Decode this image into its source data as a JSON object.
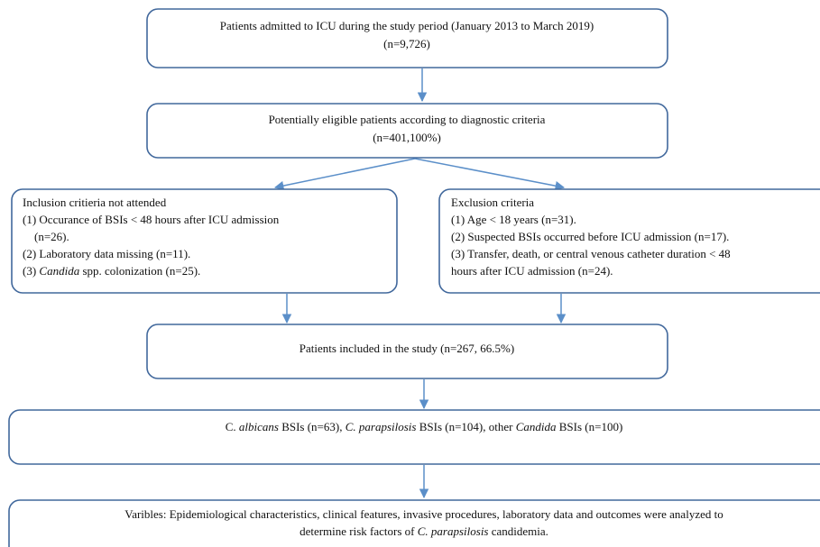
{
  "nodes": [
    {
      "lines": [
        [
          {
            "text": "Patients admitted to ICU during the study period (January 2013 to March 2019)"
          }
        ],
        [
          {
            "text": "(n=9,726)"
          }
        ]
      ]
    },
    {
      "lines": [
        [
          {
            "text": "Potentially eligible patients according to diagnostic criteria"
          }
        ],
        [
          {
            "text": "(n=401,100%)"
          }
        ]
      ]
    },
    {
      "lines": [
        [
          {
            "text": "Inclusion critieria not attended"
          }
        ],
        [
          {
            "text": "(1) Occurance of BSIs < 48 hours after ICU admission"
          }
        ],
        [
          {
            "text": "(n=26)."
          }
        ],
        [
          {
            "text": "(2) Laboratory data missing (n=11)."
          }
        ],
        [
          {
            "text": "(3) "
          },
          {
            "text": "Candida",
            "italic": true
          },
          {
            "text": " spp. colonization (n=25)."
          }
        ]
      ]
    },
    {
      "lines": [
        [
          {
            "text": "Exclusion criteria"
          }
        ],
        [
          {
            "text": "(1) Age < 18 years (n=31)."
          }
        ],
        [
          {
            "text": "(2) Suspected BSIs occurred before ICU admission (n=17)."
          }
        ],
        [
          {
            "text": "(3) Transfer, death, or central venous catheter duration < 48"
          }
        ],
        [
          {
            "text": "hours after ICU admission (n=24)."
          }
        ]
      ]
    },
    {
      "lines": [
        [
          {
            "text": "Patients included in the study (n=267, 66.5%)"
          }
        ]
      ]
    },
    {
      "lines": [
        [
          {
            "text": "C. "
          },
          {
            "text": "albicans",
            "italic": true
          },
          {
            "text": " BSIs (n=63), "
          },
          {
            "text": "C. parapsilosis",
            "italic": true
          },
          {
            "text": " BSIs (n=104), other "
          },
          {
            "text": "Candida",
            "italic": true
          },
          {
            "text": " BSIs (n=100)"
          }
        ]
      ]
    },
    {
      "lines": [
        [
          {
            "text": "Varibles: Epidemiological characteristics, clinical features, invasive procedures, laboratory data and outcomes were analyzed to"
          }
        ],
        [
          {
            "text": "determine risk factors of "
          },
          {
            "text": "C. parapsilosis",
            "italic": true
          },
          {
            "text": " candidemia."
          }
        ]
      ]
    }
  ]
}
